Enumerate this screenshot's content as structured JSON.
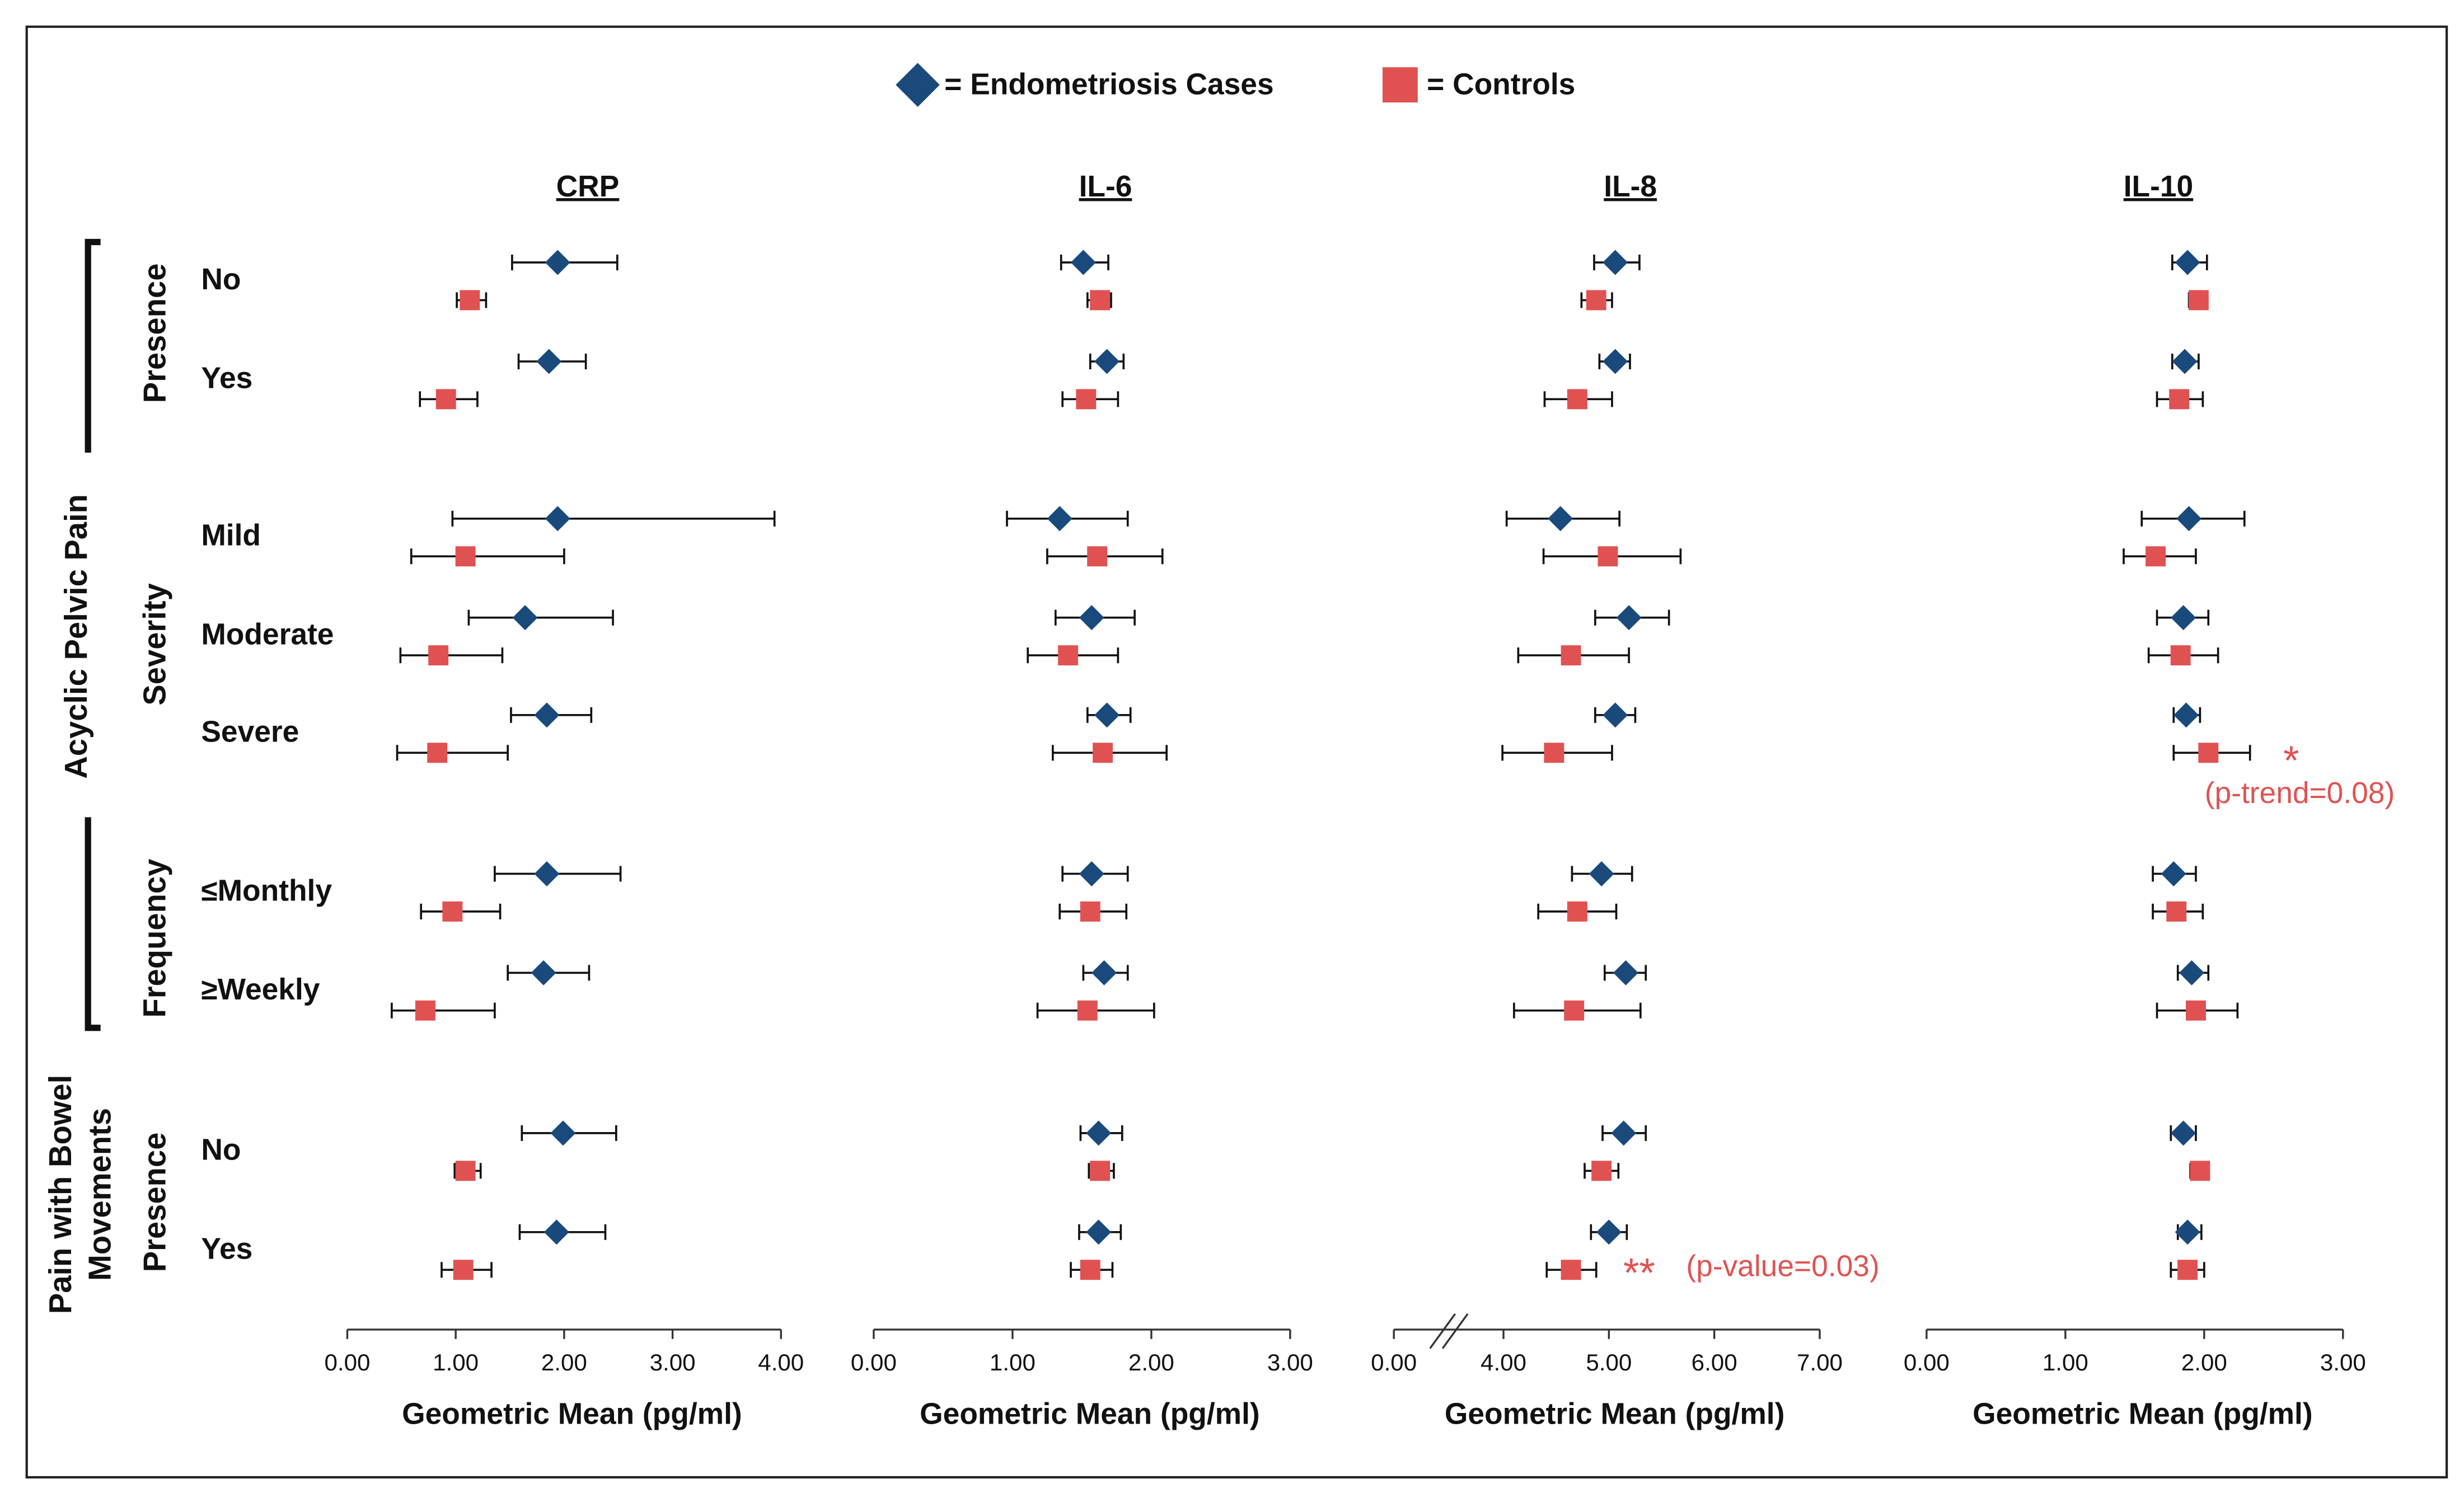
{
  "chart_data": {
    "type": "forest",
    "series": [
      {
        "name": "= Endometriosis Cases",
        "color": "#1a4a7c",
        "marker": "diamond"
      },
      {
        "name": "= Controls",
        "color": "#e05252",
        "marker": "square"
      }
    ],
    "categories": [
      "No",
      "Yes",
      "Mild",
      "Moderate",
      "Severe",
      "≤Monthly",
      "≥Weekly",
      "No",
      "Yes"
    ],
    "outer_groups": [
      {
        "lines": [
          "Acyclic Pelvic Pain"
        ]
      },
      {
        "lines": [
          "Pain with Bowel",
          "Movements"
        ]
      }
    ],
    "inner_groups": [
      "Presence",
      "Severity",
      "Frequency",
      "Presence"
    ],
    "panels": [
      {
        "title": "CRP",
        "x_label": "Geometric Mean (pg/ml)",
        "xlim": [
          0,
          4
        ],
        "xticks": [
          {
            "value": 0,
            "label": "0.00"
          },
          {
            "value": 1,
            "label": "1.00"
          },
          {
            "value": 2,
            "label": "2.00"
          },
          {
            "value": 3,
            "label": "3.00"
          },
          {
            "value": 4,
            "label": "4.00"
          }
        ],
        "series": [
          {
            "values": [
              1.94,
              1.86,
              1.94,
              1.64,
              1.84,
              1.84,
              1.81,
              1.99,
              1.93
            ],
            "lower": [
              1.52,
              1.58,
              0.97,
              1.12,
              1.51,
              1.36,
              1.48,
              1.61,
              1.59
            ],
            "upper": [
              2.49,
              2.2,
              3.94,
              2.45,
              2.25,
              2.52,
              2.23,
              2.48,
              2.38
            ]
          },
          {
            "values": [
              1.13,
              0.91,
              1.09,
              0.84,
              0.83,
              0.97,
              0.72,
              1.09,
              1.07
            ],
            "lower": [
              1.01,
              0.67,
              0.59,
              0.49,
              0.46,
              0.68,
              0.41,
              0.99,
              0.87
            ],
            "upper": [
              1.28,
              1.2,
              2.0,
              1.43,
              1.48,
              1.41,
              1.36,
              1.23,
              1.33
            ]
          }
        ]
      },
      {
        "title": "IL-6",
        "x_label": "Geometric Mean (pg/ml)",
        "xlim": [
          0,
          3
        ],
        "xticks": [
          {
            "value": 0,
            "label": "0.00"
          },
          {
            "value": 1,
            "label": "1.00"
          },
          {
            "value": 2,
            "label": "2.00"
          },
          {
            "value": 3,
            "label": "3.00"
          }
        ],
        "series": [
          {
            "values": [
              1.51,
              1.68,
              1.34,
              1.57,
              1.68,
              1.57,
              1.66,
              1.62,
              1.62
            ],
            "lower": [
              1.35,
              1.56,
              0.96,
              1.31,
              1.54,
              1.36,
              1.51,
              1.49,
              1.48
            ],
            "upper": [
              1.69,
              1.8,
              1.83,
              1.88,
              1.85,
              1.83,
              1.83,
              1.79,
              1.78
            ]
          },
          {
            "values": [
              1.63,
              1.53,
              1.61,
              1.4,
              1.65,
              1.56,
              1.54,
              1.63,
              1.56
            ],
            "lower": [
              1.54,
              1.36,
              1.25,
              1.11,
              1.29,
              1.34,
              1.18,
              1.55,
              1.42
            ],
            "upper": [
              1.71,
              1.76,
              2.08,
              1.76,
              2.11,
              1.82,
              2.02,
              1.73,
              1.72
            ]
          }
        ]
      },
      {
        "title": "IL-8",
        "x_label": "Geometric Mean (pg/ml)",
        "xlim": [
          0,
          7
        ],
        "axis_break": [
          0,
          2.96
        ],
        "xticks": [
          {
            "value": 0,
            "label": "0.00"
          },
          {
            "value": 4,
            "label": "4.00"
          },
          {
            "value": 5,
            "label": "5.00"
          },
          {
            "value": 6,
            "label": "6.00"
          },
          {
            "value": 7,
            "label": "7.00"
          }
        ],
        "series": [
          {
            "values": [
              5.06,
              5.06,
              4.54,
              5.19,
              5.06,
              4.93,
              5.16,
              5.14,
              5.0
            ],
            "lower": [
              4.86,
              4.91,
              4.03,
              4.87,
              4.87,
              4.65,
              4.96,
              4.94,
              4.83
            ],
            "upper": [
              5.29,
              5.2,
              5.1,
              5.57,
              5.25,
              5.22,
              5.35,
              5.35,
              5.17
            ]
          },
          {
            "values": [
              4.88,
              4.7,
              4.99,
              4.64,
              4.48,
              4.7,
              4.67,
              4.93,
              4.64
            ],
            "lower": [
              4.74,
              4.39,
              4.38,
              4.14,
              3.99,
              4.33,
              4.1,
              4.77,
              4.41
            ],
            "upper": [
              5.03,
              5.03,
              5.68,
              5.19,
              5.03,
              5.07,
              5.3,
              5.09,
              4.88
            ]
          }
        ],
        "annotations": [
          {
            "text": "**"
          },
          {
            "text": "(p-value=0.03)"
          }
        ]
      },
      {
        "title": "IL-10",
        "x_label": "Geometric Mean (pg/ml)",
        "xlim": [
          0,
          3
        ],
        "xticks": [
          {
            "value": 0,
            "label": "0.00"
          },
          {
            "value": 1,
            "label": "1.00"
          },
          {
            "value": 2,
            "label": "2.00"
          },
          {
            "value": 3,
            "label": "3.00"
          }
        ],
        "series": [
          {
            "values": [
              1.88,
              1.86,
              1.89,
              1.85,
              1.87,
              1.78,
              1.91,
              1.85,
              1.88
            ],
            "lower": [
              1.77,
              1.77,
              1.55,
              1.66,
              1.78,
              1.63,
              1.81,
              1.76,
              1.81
            ],
            "upper": [
              2.02,
              1.96,
              2.29,
              2.03,
              1.97,
              1.94,
              2.03,
              1.94,
              1.98
            ]
          },
          {
            "values": [
              1.96,
              1.82,
              1.65,
              1.83,
              2.03,
              1.8,
              1.94,
              1.97,
              1.88
            ],
            "lower": [
              1.89,
              1.66,
              1.42,
              1.6,
              1.78,
              1.63,
              1.66,
              1.9,
              1.76
            ],
            "upper": [
              2.02,
              1.99,
              1.94,
              2.1,
              2.33,
              1.99,
              2.24,
              2.03,
              2.0
            ]
          }
        ],
        "annotations": [
          {
            "text": "*"
          },
          {
            "text": "(p-trend=0.08)"
          }
        ]
      }
    ]
  }
}
